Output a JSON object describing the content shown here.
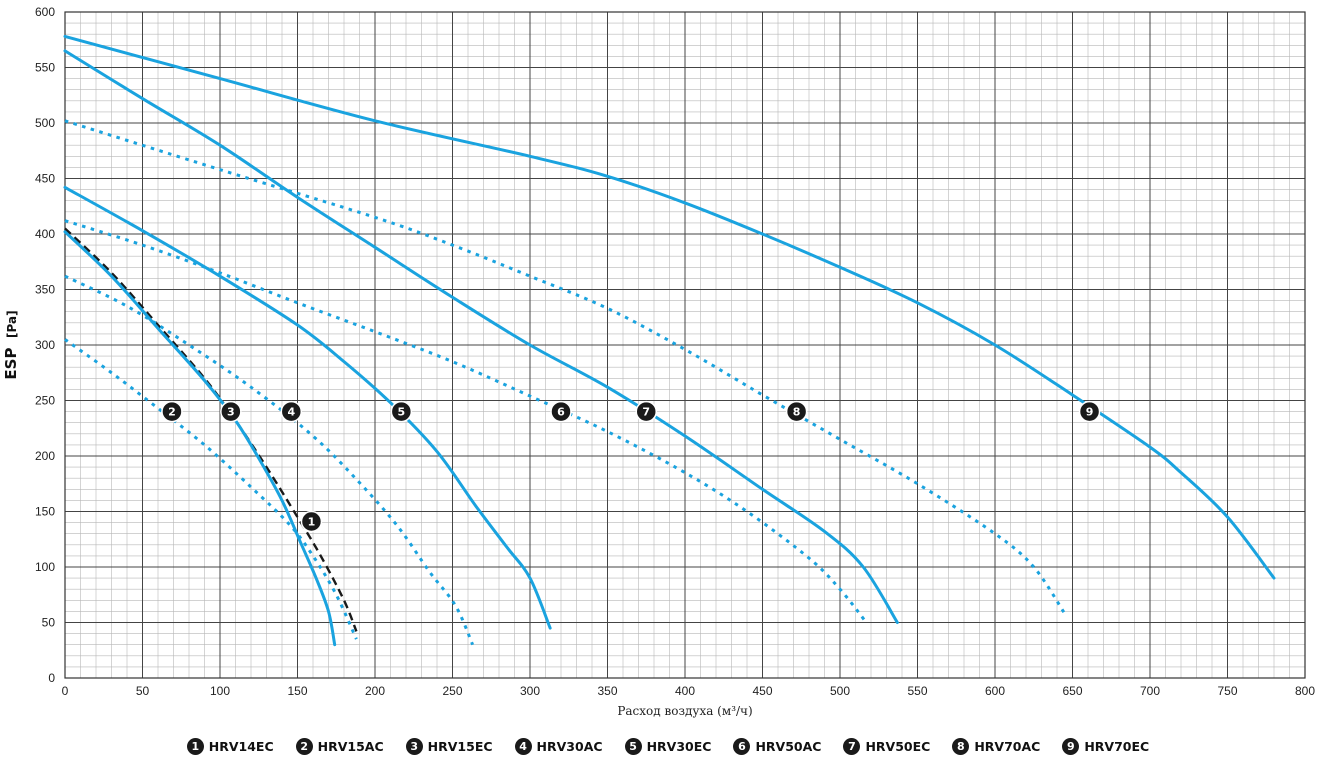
{
  "chart_data": {
    "type": "line",
    "xlabel": "Расход воздуха (м³/ч)",
    "ylabel": "ESP",
    "ylabel_unit": "[Pa]",
    "xlim": [
      0,
      800
    ],
    "ylim": [
      0,
      600
    ],
    "x_ticks": [
      0,
      50,
      100,
      150,
      200,
      250,
      300,
      350,
      400,
      450,
      500,
      550,
      600,
      650,
      700,
      750,
      800
    ],
    "y_ticks": [
      0,
      50,
      100,
      150,
      200,
      250,
      300,
      350,
      400,
      450,
      500,
      550,
      600
    ],
    "grid": true,
    "minor_grid_step": [
      10,
      10
    ],
    "legend_position": "bottom",
    "colors": {
      "series": "#1aa3df",
      "dashed_black": "#1a1a1a",
      "marker": "#1a1a1a",
      "grid_major": "#444444",
      "grid_minor": "#b8b8b8"
    },
    "series": [
      {
        "id": "1",
        "name": "HRV14EC",
        "style": "dashed-black",
        "label_at": [
          159,
          141
        ],
        "points": [
          [
            0,
            405
          ],
          [
            30,
            365
          ],
          [
            60,
            318
          ],
          [
            90,
            270
          ],
          [
            110,
            232
          ],
          [
            130,
            190
          ],
          [
            150,
            145
          ],
          [
            165,
            110
          ],
          [
            180,
            70
          ],
          [
            188,
            42
          ]
        ]
      },
      {
        "id": "2",
        "name": "HRV15AC",
        "style": "dotted",
        "label_at": [
          69,
          240
        ],
        "points": [
          [
            0,
            305
          ],
          [
            30,
            275
          ],
          [
            60,
            243
          ],
          [
            90,
            210
          ],
          [
            120,
            172
          ],
          [
            145,
            138
          ],
          [
            160,
            110
          ],
          [
            175,
            75
          ],
          [
            188,
            35
          ]
        ]
      },
      {
        "id": "3",
        "name": "HRV15EC",
        "style": "solid",
        "label_at": [
          107,
          240
        ],
        "points": [
          [
            0,
            402
          ],
          [
            30,
            362
          ],
          [
            60,
            315
          ],
          [
            90,
            268
          ],
          [
            110,
            232
          ],
          [
            125,
            198
          ],
          [
            140,
            160
          ],
          [
            152,
            122
          ],
          [
            162,
            90
          ],
          [
            170,
            60
          ],
          [
            174,
            30
          ]
        ]
      },
      {
        "id": "4",
        "name": "HRV30AC",
        "style": "dotted",
        "label_at": [
          146,
          240
        ],
        "points": [
          [
            0,
            362
          ],
          [
            40,
            335
          ],
          [
            80,
            300
          ],
          [
            120,
            262
          ],
          [
            160,
            218
          ],
          [
            190,
            176
          ],
          [
            215,
            136
          ],
          [
            235,
            96
          ],
          [
            252,
            65
          ],
          [
            263,
            30
          ]
        ]
      },
      {
        "id": "5",
        "name": "HRV30EC",
        "style": "solid",
        "label_at": [
          217,
          240
        ],
        "points": [
          [
            0,
            442
          ],
          [
            50,
            403
          ],
          [
            100,
            362
          ],
          [
            150,
            318
          ],
          [
            180,
            285
          ],
          [
            210,
            248
          ],
          [
            240,
            204
          ],
          [
            265,
            155
          ],
          [
            285,
            118
          ],
          [
            300,
            90
          ],
          [
            313,
            45
          ]
        ]
      },
      {
        "id": "6",
        "name": "HRV50AC",
        "style": "dotted",
        "label_at": [
          320,
          240
        ],
        "points": [
          [
            0,
            412
          ],
          [
            50,
            390
          ],
          [
            100,
            365
          ],
          [
            150,
            338
          ],
          [
            200,
            312
          ],
          [
            250,
            285
          ],
          [
            300,
            254
          ],
          [
            350,
            222
          ],
          [
            400,
            185
          ],
          [
            440,
            150
          ],
          [
            480,
            108
          ],
          [
            500,
            80
          ],
          [
            517,
            50
          ]
        ]
      },
      {
        "id": "7",
        "name": "HRV50EC",
        "style": "solid",
        "label_at": [
          375,
          240
        ],
        "points": [
          [
            0,
            565
          ],
          [
            50,
            522
          ],
          [
            100,
            480
          ],
          [
            150,
            433
          ],
          [
            200,
            388
          ],
          [
            250,
            343
          ],
          [
            300,
            300
          ],
          [
            350,
            262
          ],
          [
            400,
            218
          ],
          [
            450,
            170
          ],
          [
            490,
            132
          ],
          [
            515,
            100
          ],
          [
            537,
            50
          ]
        ]
      },
      {
        "id": "8",
        "name": "HRV70AC",
        "style": "dotted",
        "label_at": [
          472,
          240
        ],
        "points": [
          [
            0,
            502
          ],
          [
            100,
            458
          ],
          [
            200,
            415
          ],
          [
            250,
            390
          ],
          [
            300,
            362
          ],
          [
            350,
            333
          ],
          [
            400,
            296
          ],
          [
            450,
            255
          ],
          [
            500,
            215
          ],
          [
            550,
            175
          ],
          [
            600,
            130
          ],
          [
            625,
            100
          ],
          [
            645,
            58
          ]
        ]
      },
      {
        "id": "9",
        "name": "HRV70EC",
        "style": "solid",
        "label_at": [
          661,
          240
        ],
        "points": [
          [
            0,
            578
          ],
          [
            100,
            540
          ],
          [
            200,
            502
          ],
          [
            300,
            470
          ],
          [
            350,
            452
          ],
          [
            400,
            428
          ],
          [
            450,
            400
          ],
          [
            500,
            370
          ],
          [
            550,
            338
          ],
          [
            600,
            300
          ],
          [
            650,
            255
          ],
          [
            700,
            208
          ],
          [
            720,
            185
          ],
          [
            750,
            145
          ],
          [
            780,
            90
          ]
        ]
      }
    ]
  }
}
